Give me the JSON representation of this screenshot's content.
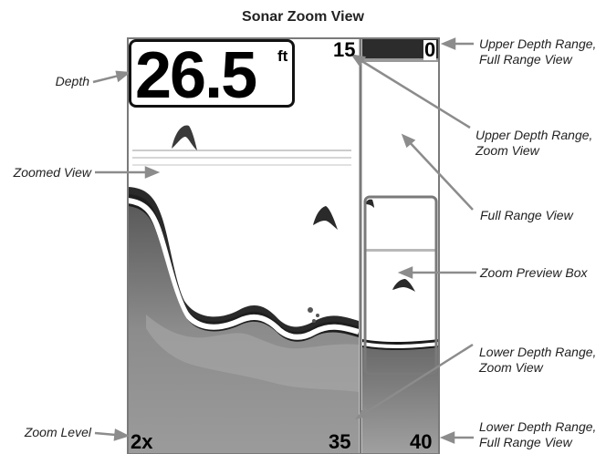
{
  "title": "Sonar Zoom View",
  "screen": {
    "depth": "26.5",
    "depth_unit": "ft",
    "zoom_upper": "15",
    "full_upper": "0",
    "zoom_lower": "35",
    "full_lower": "40",
    "zoom_level": "2x"
  },
  "callouts": {
    "depth": "Depth",
    "zoomed_view": "Zoomed View",
    "zoom_level": "Zoom Level",
    "upper_full_1": "Upper Depth Range,",
    "upper_full_2": "Full Range View",
    "upper_zoom_1": "Upper Depth Range,",
    "upper_zoom_2": "Zoom View",
    "full_range_view": "Full Range View",
    "zoom_preview_box": "Zoom Preview Box",
    "lower_zoom_1": "Lower Depth Range,",
    "lower_zoom_2": "Zoom View",
    "lower_full_1": "Lower Depth Range,",
    "lower_full_2": "Full Range View"
  },
  "colors": {
    "ink": "#111111",
    "sonar_dark": "#333333",
    "sonar_mid": "#8a8a8a",
    "sonar_light": "#c8c8c8",
    "arrow": "#8c8c8c"
  }
}
